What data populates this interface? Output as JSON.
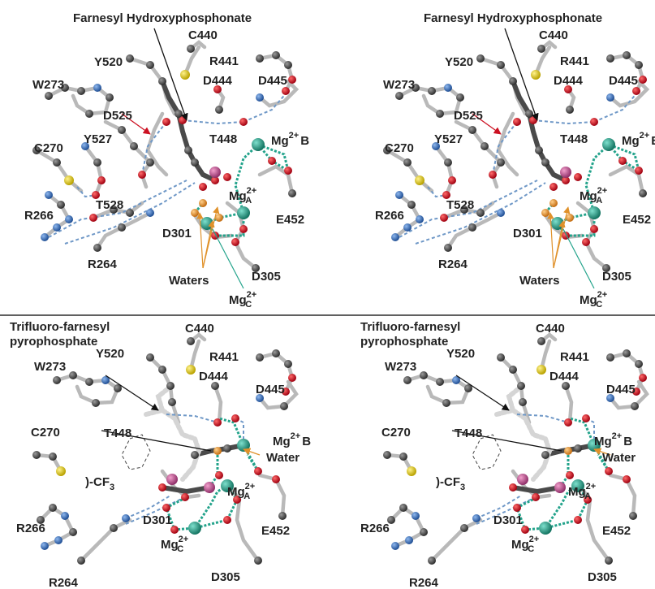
{
  "top_panel": {
    "ligand_title": "Farnesyl Hydroxyphosphonate",
    "residues": {
      "c440": "C440",
      "r441": "R441",
      "y520": "Y520",
      "d444": "D444",
      "d445": "D445",
      "w273": "W273",
      "d525": "D525",
      "t448": "T448",
      "y527": "Y527",
      "c270": "C270",
      "r266": "R266",
      "t528": "T528",
      "d301": "D301",
      "e452": "E452",
      "r264": "R264",
      "d305": "D305",
      "waters": "Waters"
    },
    "mg_b": {
      "base": "Mg",
      "charge": "2+",
      "site": "B"
    },
    "mg_a": {
      "base": "Mg",
      "charge": "2+",
      "site": "A"
    },
    "mg_c": {
      "base": "Mg",
      "charge": "2+",
      "site": "C"
    }
  },
  "bottom_panel": {
    "ligand_title_line1": "Trifluoro-farnesyl",
    "ligand_title_line2": "pyrophosphate",
    "residues": {
      "c440": "C440",
      "y520": "Y520",
      "r441": "R441",
      "w273": "W273",
      "d444": "D444",
      "d445": "D445",
      "c270": "C270",
      "t448": "T448",
      "water": "Water",
      "cf3_prefix": ")-CF",
      "cf3_sub": "3",
      "r266": "R266",
      "d301": "D301",
      "e452": "E452",
      "r264": "R264",
      "d305": "D305"
    },
    "mg_b": {
      "base": "Mg",
      "charge": "2+",
      "site": "B"
    },
    "mg_a": {
      "base": "Mg",
      "charge": "2+",
      "site": "A"
    },
    "mg_c": {
      "base": "Mg",
      "charge": "2+",
      "site": "C"
    }
  },
  "colors": {
    "carbon": "#555555",
    "oxygen": "#cc1122",
    "nitrogen": "#2f6fb8",
    "sulfur": "#d4c82a",
    "phosphorus": "#c0508a",
    "magnesium": "#2aa28c",
    "water": "#e0912a",
    "hbond": "#6f98c7",
    "divider": "#000000"
  },
  "icons": [
    "atom-sphere",
    "bond-stick",
    "arrow-pointer"
  ]
}
